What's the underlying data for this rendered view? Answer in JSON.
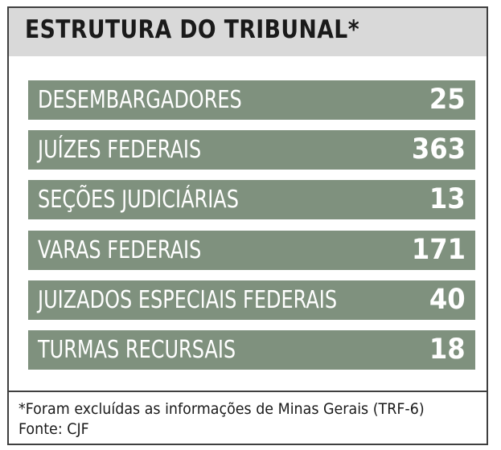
{
  "header": {
    "title": "ESTRUTURA DO TRIBUNAL*"
  },
  "rows": [
    {
      "label": "DESEMBARGADORES",
      "value": "25"
    },
    {
      "label": "JUÍZES FEDERAIS",
      "value": "363"
    },
    {
      "label": "SEÇÕES JUDICIÁRIAS",
      "value": "13"
    },
    {
      "label": "VARAS FEDERAIS",
      "value": "171"
    },
    {
      "label": "JUIZADOS ESPECIAIS FEDERAIS",
      "value": "40"
    },
    {
      "label": "TURMAS RECURSAIS",
      "value": "18"
    }
  ],
  "footer": {
    "footnote": "*Foram excluídas as informações de Minas Gerais (TRF-6)",
    "source": "Fonte: CJF"
  },
  "colors": {
    "header_background": "#d9d9d9",
    "row_background": "#7f917e",
    "row_text": "#ffffff",
    "border": "#3f3f3f"
  }
}
